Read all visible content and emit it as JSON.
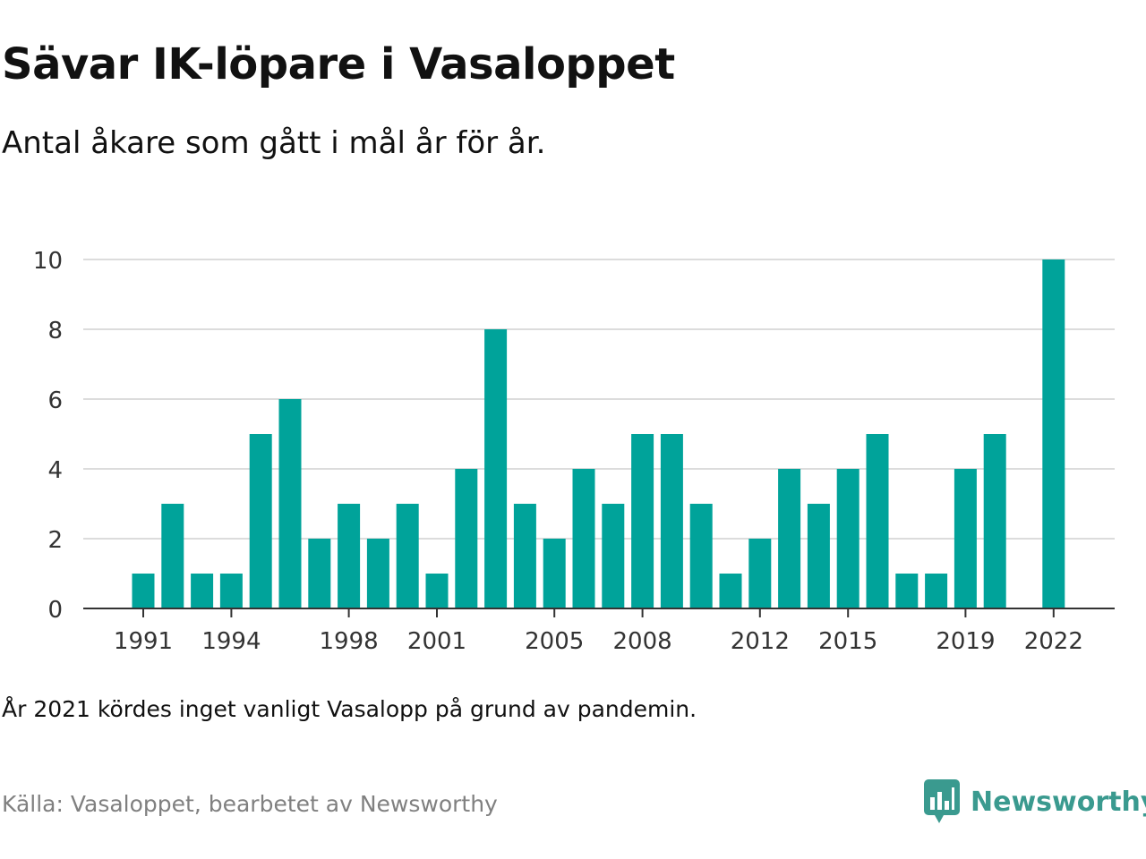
{
  "header": {
    "title": "Sävar IK-löpare i Vasaloppet",
    "subtitle": "Antal åkare som gått i mål år för år."
  },
  "footer": {
    "note": "År 2021 kördes inget vanligt Vasalopp på grund av pandemin.",
    "source": "Källa: Vasaloppet, bearbetet av Newsworthy",
    "brand": "Newsworthy"
  },
  "colors": {
    "bar": "#00a39a",
    "brand": "#3a9a8f",
    "grid": "#dcdcdc",
    "axis": "#333333"
  },
  "chart_data": {
    "type": "bar",
    "x": [
      1991,
      1992,
      1993,
      1994,
      1995,
      1996,
      1997,
      1998,
      1999,
      2000,
      2001,
      2002,
      2003,
      2004,
      2005,
      2006,
      2007,
      2008,
      2009,
      2010,
      2011,
      2012,
      2013,
      2014,
      2015,
      2016,
      2017,
      2018,
      2019,
      2020,
      2022
    ],
    "values": [
      1,
      3,
      1,
      1,
      5,
      6,
      2,
      3,
      2,
      3,
      1,
      4,
      8,
      3,
      2,
      4,
      3,
      5,
      5,
      3,
      1,
      2,
      4,
      3,
      4,
      5,
      1,
      1,
      4,
      5,
      10
    ],
    "x_ticks": [
      1991,
      1994,
      1998,
      2001,
      2005,
      2008,
      2012,
      2015,
      2019,
      2022
    ],
    "y_ticks": [
      0,
      2,
      4,
      6,
      8,
      10
    ],
    "ylim": [
      0,
      10
    ],
    "xlabel": "",
    "ylabel": "",
    "grid": true
  }
}
